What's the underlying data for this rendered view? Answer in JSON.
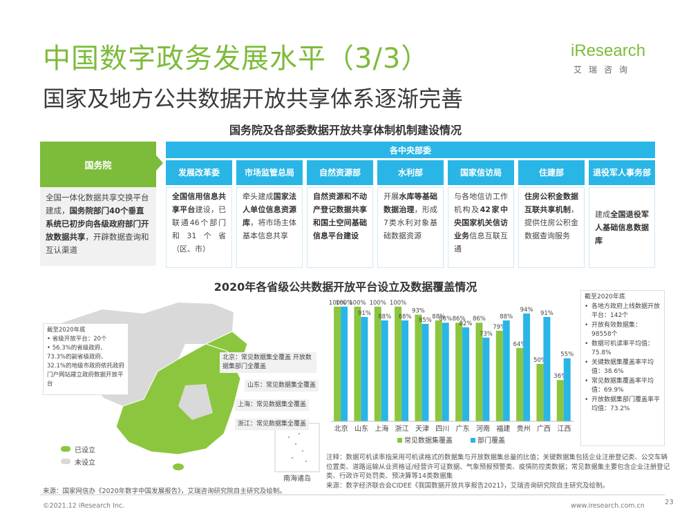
{
  "header": {
    "title": "中国数字政务发展水平（3/3）",
    "subtitle": "国家及地方公共数据开放共享体系逐渐完善",
    "logo": {
      "brand": "iResearch",
      "cn": "艾瑞咨询"
    }
  },
  "section1": {
    "title": "国务院及各部委数据开放共享体制机制建设情况",
    "state_council": {
      "label": "国务院",
      "text_a": "全国一体化数据共享交换平台建成，",
      "text_b": "国务院部门40个垂直系统已初步向各级政府部门开放数据共享",
      "text_c": "，开辟数据查询和互认渠道"
    },
    "central_label": "各中央部委",
    "departments": [
      {
        "name": "发展改革委",
        "bold": "全国信用信息共享平台",
        "text": "建设，已联通46个部门和31个省（区、市）",
        "bold_after": ""
      },
      {
        "name": "市场监管总局",
        "pre": "牵头建成",
        "bold": "国家法人单位信息资源库",
        "text": "，将市场主体基本信息共享",
        "bold_after": ""
      },
      {
        "name": "自然资源部",
        "bold": "自然资源和不动产登记数据共享和国土空间基础信息平台建设",
        "text": ""
      },
      {
        "name": "水利部",
        "pre": "开展",
        "bold": "水库等基础数据治理",
        "text": "，形成7类水利对象基础数据资源"
      },
      {
        "name": "国家信访局",
        "pre": "与各地信访工作机构及",
        "bold": "42家中央国家机关信访业务",
        "text": "信息互联互通"
      },
      {
        "name": "住建部",
        "bold": "住房公积金数据互联共享机制",
        "text": "，提供住房公积金数据查询服务"
      },
      {
        "name": "退役军人事务部",
        "pre": "建成",
        "bold": "全国退役军人基础信息数据库",
        "text": ""
      }
    ]
  },
  "section2": {
    "title": "2020年各省级公共数据开放平台设立及数据覆盖情况",
    "map": {
      "info_box": {
        "heading": "截至2020年底",
        "items": [
          "省级开放平台：20个",
          "56.3%的省级政府、73.3%的副省级政府、32.1%的地级市政府依托政府门户网站建立政府数据开放平台"
        ]
      },
      "callouts": [
        "北京：常见数据集全覆盖 开放数据集部门全覆盖",
        "山东：常见数据集全覆盖",
        "上海：常见数据集全覆盖",
        "浙江：常见数据集全覆盖"
      ],
      "legend": [
        {
          "label": "已设立",
          "color": "#8cc63f"
        },
        {
          "label": "未设立",
          "color": "#d9d9d9"
        }
      ],
      "inset_label": "南海诸岛"
    },
    "right_box": {
      "heading": "截至2020年底",
      "items": [
        "各地方政府上线数据开放平台：142个",
        "开放有效数据集：98558个",
        "数据可机读率平均值：75.8%",
        "关键数据集覆盖率平均值：38.6%",
        "常见数据集覆盖率平均值：69.9%",
        "开放数据集部门覆盖率平均值：73.2%"
      ]
    },
    "note": "注释：数据可机读率指采用可机读格式的数据集与开放数据集总量的比值；关键数据集包括企业注册登记类、公交车辆位置类、道路运输从业资格证/经营许可证数据、气象预报预警类、疫情防控类数据；常见数据集主要包含企业注册登记类、行政许可处罚类、预决算等14类数据集",
    "source_right": "来源：数字经济联合会CIDEE《我国数据开放共享报告2021》，艾瑞咨询研究院自主研究及绘制。",
    "source_left": "来源：国家网信办《2020年数字中国发展报告》，艾瑞咨询研究院自主研究及绘制。"
  },
  "footer": {
    "copyright": "©2021.12 iResearch Inc.",
    "url": "www.iresearch.com.cn",
    "page": "23"
  },
  "colors": {
    "green": "#8cc63f",
    "blue": "#29b6e6",
    "title_green": "#7dbb3a"
  },
  "chart_data": {
    "type": "bar",
    "categories": [
      "北京",
      "山东",
      "上海",
      "浙江",
      "天津",
      "四川",
      "广东",
      "河南",
      "福建",
      "贵州",
      "广西",
      "江西"
    ],
    "series": [
      {
        "name": "常见数据集覆盖",
        "color": "#8cc63f",
        "values": [
          100,
          100,
          100,
          100,
          93,
          88,
          86,
          86,
          79,
          64,
          50,
          36
        ]
      },
      {
        "name": "部门覆盖",
        "color": "#29b6e6",
        "values": [
          100,
          91,
          88,
          88,
          85,
          86,
          82,
          73,
          88,
          94,
          91,
          55
        ]
      }
    ],
    "value_suffix": "%",
    "ylim": [
      0,
      100
    ]
  }
}
